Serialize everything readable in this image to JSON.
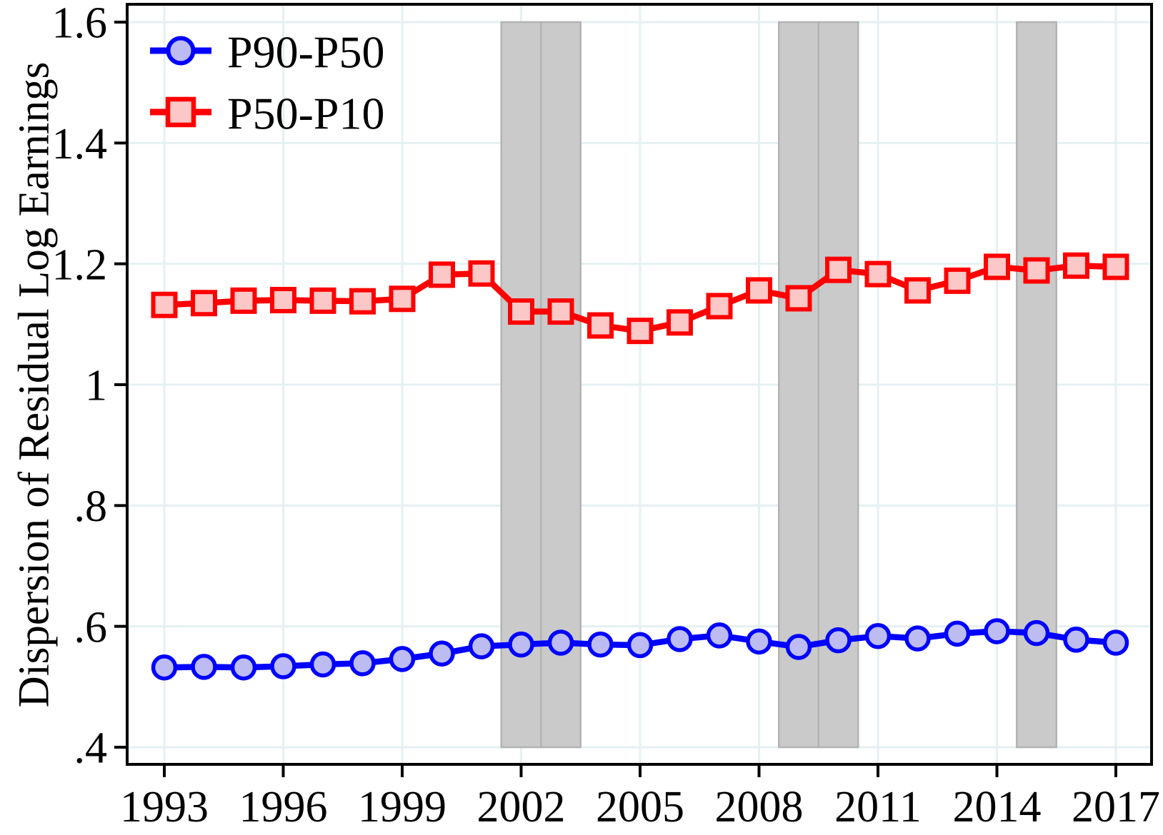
{
  "figure": {
    "background": "#ffffff",
    "frame_color": "#000000",
    "grid_color": "#e6f0f2",
    "band_fill": "#cacaca",
    "band_stroke": "#b3b3b3"
  },
  "chart_data": {
    "type": "line",
    "title": "",
    "xlabel": "",
    "ylabel": "Dispersion of Residual Log Earnings",
    "x": [
      1993,
      1994,
      1995,
      1996,
      1997,
      1998,
      1999,
      2000,
      2001,
      2002,
      2003,
      2004,
      2005,
      2006,
      2007,
      2008,
      2009,
      2010,
      2011,
      2012,
      2013,
      2014,
      2015,
      2016,
      2017
    ],
    "series": [
      {
        "name": "P90-P50",
        "marker": "circle",
        "line_color": "#0202ff",
        "marker_fill": "#bcbcf2",
        "marker_stroke": "#0000ff",
        "values": [
          0.532,
          0.533,
          0.532,
          0.534,
          0.537,
          0.539,
          0.546,
          0.555,
          0.567,
          0.57,
          0.573,
          0.57,
          0.569,
          0.579,
          0.585,
          0.575,
          0.566,
          0.577,
          0.584,
          0.58,
          0.588,
          0.592,
          0.589,
          0.578,
          0.573
        ]
      },
      {
        "name": "P50-P10",
        "marker": "square",
        "line_color": "#ff0000",
        "marker_fill": "#fcc7c7",
        "marker_stroke": "#ff0000",
        "values": [
          1.132,
          1.135,
          1.139,
          1.14,
          1.139,
          1.138,
          1.142,
          1.182,
          1.184,
          1.121,
          1.121,
          1.098,
          1.089,
          1.103,
          1.13,
          1.156,
          1.143,
          1.19,
          1.183,
          1.156,
          1.172,
          1.195,
          1.189,
          1.197,
          1.195
        ]
      }
    ],
    "ylim": [
      0.4,
      1.6
    ],
    "xlim": [
      1993,
      2017
    ],
    "yticks": {
      "values": [
        0.4,
        0.6,
        0.8,
        1.0,
        1.2,
        1.4,
        1.6
      ],
      "labels": [
        ".4",
        ".6",
        ".8",
        "1",
        "1.2",
        "1.4",
        "1.6"
      ]
    },
    "xticks": {
      "values": [
        1993,
        1996,
        1999,
        2002,
        2005,
        2008,
        2011,
        2014,
        2017
      ],
      "labels": [
        "1993",
        "1996",
        "1999",
        "2002",
        "2005",
        "2008",
        "2011",
        "2014",
        "2017"
      ]
    },
    "recession_bands": [
      {
        "from": 2001.5,
        "to": 2002.5
      },
      {
        "from": 2002.5,
        "to": 2003.5
      },
      {
        "from": 2008.5,
        "to": 2009.5
      },
      {
        "from": 2009.5,
        "to": 2010.5
      },
      {
        "from": 2014.5,
        "to": 2015.5
      }
    ],
    "grid": true,
    "legend": {
      "position": "top-left",
      "entries": [
        "P90-P50",
        "P50-P10"
      ]
    }
  }
}
